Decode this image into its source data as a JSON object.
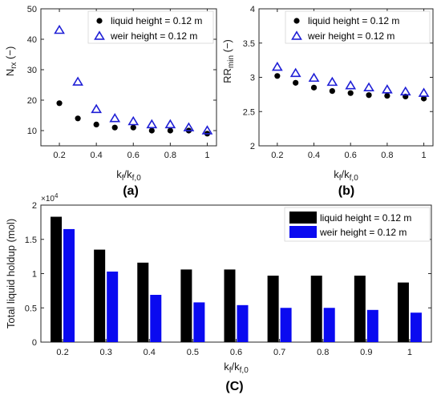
{
  "colors": {
    "liquid": "#000000",
    "weir_marker": "#1f1fd6",
    "weir_bar": "#0a0af0",
    "axis": "#262626"
  },
  "chart_data": [
    {
      "id": "a",
      "type": "scatter",
      "panel_label": "(a)",
      "xlabel": "k",
      "xlabel_sub1": "f",
      "xlabel_mid": "/k",
      "xlabel_sub2": "f,0",
      "ylabel": "N",
      "ylabel_sub": "rx",
      "ylabel_suffix": " (−)",
      "xlim": [
        0.1,
        1.05
      ],
      "ylim": [
        5,
        50
      ],
      "xticks": [
        "0.2",
        "0.4",
        "0.6",
        "0.8",
        "1"
      ],
      "yticks": [
        "10",
        "20",
        "30",
        "40",
        "50"
      ],
      "legend_position": "top-right",
      "series": [
        {
          "name": "liquid height = 0.12 m",
          "marker": "circle",
          "x": [
            0.2,
            0.3,
            0.4,
            0.5,
            0.6,
            0.7,
            0.8,
            0.9,
            1.0
          ],
          "y": [
            19,
            14,
            12,
            11,
            11,
            10,
            10,
            10,
            9
          ]
        },
        {
          "name": "weir height = 0.12 m",
          "marker": "triangle",
          "x": [
            0.2,
            0.3,
            0.4,
            0.5,
            0.6,
            0.7,
            0.8,
            0.9,
            1.0
          ],
          "y": [
            43,
            26,
            17,
            14,
            13,
            12,
            12,
            11,
            10
          ]
        }
      ]
    },
    {
      "id": "b",
      "type": "scatter",
      "panel_label": "(b)",
      "xlabel": "k",
      "xlabel_sub1": "f",
      "xlabel_mid": "/k",
      "xlabel_sub2": "f,0",
      "ylabel": "RR",
      "ylabel_sub": "min",
      "ylabel_suffix": " (−)",
      "xlim": [
        0.1,
        1.05
      ],
      "ylim": [
        2,
        4
      ],
      "xticks": [
        "0.2",
        "0.4",
        "0.6",
        "0.8",
        "1"
      ],
      "yticks": [
        "2",
        "2.5",
        "3",
        "3.5",
        "4"
      ],
      "legend_position": "top-right",
      "series": [
        {
          "name": "liquid height = 0.12 m",
          "marker": "circle",
          "x": [
            0.2,
            0.3,
            0.4,
            0.5,
            0.6,
            0.7,
            0.8,
            0.9,
            1.0
          ],
          "y": [
            3.02,
            2.92,
            2.85,
            2.8,
            2.77,
            2.74,
            2.73,
            2.72,
            2.69
          ]
        },
        {
          "name": "weir height = 0.12 m",
          "marker": "triangle",
          "x": [
            0.2,
            0.3,
            0.4,
            0.5,
            0.6,
            0.7,
            0.8,
            0.9,
            1.0
          ],
          "y": [
            3.15,
            3.06,
            2.99,
            2.93,
            2.88,
            2.85,
            2.82,
            2.79,
            2.77
          ]
        }
      ]
    },
    {
      "id": "c",
      "type": "bar",
      "panel_label": "(C)",
      "xlabel": "k",
      "xlabel_sub1": "f",
      "xlabel_mid": "/k",
      "xlabel_sub2": "f,0",
      "ylabel": "Total liquid holdup (mol)",
      "y_exponent": "×10",
      "y_exponent_power": "4",
      "ylim": [
        0,
        20000
      ],
      "yticks": [
        "0",
        "0.5",
        "1",
        "1.5",
        "2"
      ],
      "legend_position": "top-right",
      "categories": [
        "0.2",
        "0.3",
        "0.4",
        "0.5",
        "0.6",
        "0.7",
        "0.8",
        "0.9",
        "1"
      ],
      "series": [
        {
          "name": "liquid height = 0.12 m",
          "values": [
            18300,
            13500,
            11600,
            10600,
            10600,
            9700,
            9700,
            9700,
            8700
          ]
        },
        {
          "name": "weir height = 0.12 m",
          "values": [
            16500,
            10300,
            6900,
            5800,
            5400,
            5000,
            5000,
            4700,
            4300
          ]
        }
      ]
    }
  ]
}
